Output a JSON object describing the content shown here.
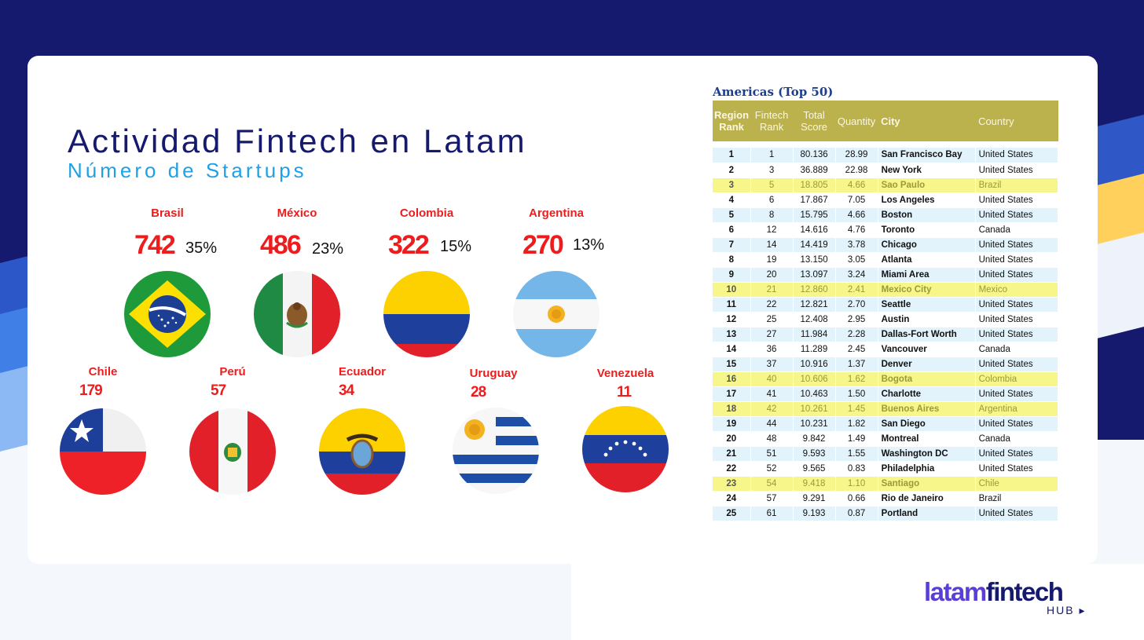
{
  "slide": {
    "title": "Actividad Fintech en Latam",
    "subtitle": "Número de Startups"
  },
  "countries_top": [
    {
      "name": "Brasil",
      "count": "742",
      "pct": "35%",
      "flag_icon": "brazil-flag-icon"
    },
    {
      "name": "México",
      "count": "486",
      "pct": "23%",
      "flag_icon": "mexico-flag-icon"
    },
    {
      "name": "Colombia",
      "count": "322",
      "pct": "15%",
      "flag_icon": "colombia-flag-icon"
    },
    {
      "name": "Argentina",
      "count": "270",
      "pct": "13%",
      "flag_icon": "argentina-flag-icon"
    }
  ],
  "countries_bottom": [
    {
      "name": "Chile",
      "count": "179",
      "flag_icon": "chile-flag-icon"
    },
    {
      "name": "Perú",
      "count": "57",
      "flag_icon": "peru-flag-icon"
    },
    {
      "name": "Ecuador",
      "count": "34",
      "flag_icon": "ecuador-flag-icon"
    },
    {
      "name": "Uruguay",
      "count": "28",
      "flag_icon": "uruguay-flag-icon"
    },
    {
      "name": "Venezuela",
      "count": "11",
      "flag_icon": "venezuela-flag-icon"
    }
  ],
  "table": {
    "title": "Americas (Top 50)",
    "headers": {
      "region_rank": "Region Rank",
      "fintech_rank": "Fintech Rank",
      "total_score": "Total Score",
      "quantity": "Quantity",
      "city": "City",
      "country": "Country"
    },
    "rows": [
      {
        "region_rank": "1",
        "fintech_rank": "1",
        "total_score": "80.136",
        "quantity": "28.99",
        "city": "San Francisco Bay",
        "country": "United States",
        "highlight": false
      },
      {
        "region_rank": "2",
        "fintech_rank": "3",
        "total_score": "36.889",
        "quantity": "22.98",
        "city": "New York",
        "country": "United States",
        "highlight": false
      },
      {
        "region_rank": "3",
        "fintech_rank": "5",
        "total_score": "18.805",
        "quantity": "4.66",
        "city": "Sao Paulo",
        "country": "Brazil",
        "highlight": true
      },
      {
        "region_rank": "4",
        "fintech_rank": "6",
        "total_score": "17.867",
        "quantity": "7.05",
        "city": "Los Angeles",
        "country": "United States",
        "highlight": false
      },
      {
        "region_rank": "5",
        "fintech_rank": "8",
        "total_score": "15.795",
        "quantity": "4.66",
        "city": "Boston",
        "country": "United States",
        "highlight": false
      },
      {
        "region_rank": "6",
        "fintech_rank": "12",
        "total_score": "14.616",
        "quantity": "4.76",
        "city": "Toronto",
        "country": "Canada",
        "highlight": false
      },
      {
        "region_rank": "7",
        "fintech_rank": "14",
        "total_score": "14.419",
        "quantity": "3.78",
        "city": "Chicago",
        "country": "United States",
        "highlight": false
      },
      {
        "region_rank": "8",
        "fintech_rank": "19",
        "total_score": "13.150",
        "quantity": "3.05",
        "city": "Atlanta",
        "country": "United States",
        "highlight": false
      },
      {
        "region_rank": "9",
        "fintech_rank": "20",
        "total_score": "13.097",
        "quantity": "3.24",
        "city": "Miami Area",
        "country": "United States",
        "highlight": false
      },
      {
        "region_rank": "10",
        "fintech_rank": "21",
        "total_score": "12.860",
        "quantity": "2.41",
        "city": "Mexico City",
        "country": "Mexico",
        "highlight": true
      },
      {
        "region_rank": "11",
        "fintech_rank": "22",
        "total_score": "12.821",
        "quantity": "2.70",
        "city": "Seattle",
        "country": "United States",
        "highlight": false
      },
      {
        "region_rank": "12",
        "fintech_rank": "25",
        "total_score": "12.408",
        "quantity": "2.95",
        "city": "Austin",
        "country": "United States",
        "highlight": false
      },
      {
        "region_rank": "13",
        "fintech_rank": "27",
        "total_score": "11.984",
        "quantity": "2.28",
        "city": "Dallas-Fort Worth",
        "country": "United States",
        "highlight": false
      },
      {
        "region_rank": "14",
        "fintech_rank": "36",
        "total_score": "11.289",
        "quantity": "2.45",
        "city": "Vancouver",
        "country": "Canada",
        "highlight": false
      },
      {
        "region_rank": "15",
        "fintech_rank": "37",
        "total_score": "10.916",
        "quantity": "1.37",
        "city": "Denver",
        "country": "United States",
        "highlight": false
      },
      {
        "region_rank": "16",
        "fintech_rank": "40",
        "total_score": "10.606",
        "quantity": "1.62",
        "city": "Bogota",
        "country": "Colombia",
        "highlight": true
      },
      {
        "region_rank": "17",
        "fintech_rank": "41",
        "total_score": "10.463",
        "quantity": "1.50",
        "city": "Charlotte",
        "country": "United States",
        "highlight": false
      },
      {
        "region_rank": "18",
        "fintech_rank": "42",
        "total_score": "10.261",
        "quantity": "1.45",
        "city": "Buenos Aires",
        "country": "Argentina",
        "highlight": true
      },
      {
        "region_rank": "19",
        "fintech_rank": "44",
        "total_score": "10.231",
        "quantity": "1.82",
        "city": "San Diego",
        "country": "United States",
        "highlight": false
      },
      {
        "region_rank": "20",
        "fintech_rank": "48",
        "total_score": "9.842",
        "quantity": "1.49",
        "city": "Montreal",
        "country": "Canada",
        "highlight": false
      },
      {
        "region_rank": "21",
        "fintech_rank": "51",
        "total_score": "9.593",
        "quantity": "1.55",
        "city": "Washington DC",
        "country": "United States",
        "highlight": false
      },
      {
        "region_rank": "22",
        "fintech_rank": "52",
        "total_score": "9.565",
        "quantity": "0.83",
        "city": "Philadelphia",
        "country": "United States",
        "highlight": false
      },
      {
        "region_rank": "23",
        "fintech_rank": "54",
        "total_score": "9.418",
        "quantity": "1.10",
        "city": "Santiago",
        "country": "Chile",
        "highlight": true
      },
      {
        "region_rank": "24",
        "fintech_rank": "57",
        "total_score": "9.291",
        "quantity": "0.66",
        "city": "Rio de Janeiro",
        "country": "Brazil",
        "highlight": false
      },
      {
        "region_rank": "25",
        "fintech_rank": "61",
        "total_score": "9.193",
        "quantity": "0.87",
        "city": "Portland",
        "country": "United States",
        "highlight": false
      }
    ]
  },
  "logo": {
    "part1": "latam",
    "part2": "fintech",
    "sub": "HUB ▸"
  },
  "colors": {
    "navy": "#161a6e",
    "accent_blue": "#1fa0e8",
    "red": "#ee1c1c",
    "header_olive": "#bbb14d",
    "highlight_yellow": "#f7f68a",
    "row_blue": "#e3f3fb",
    "logo_purple": "#5a3ed6"
  }
}
